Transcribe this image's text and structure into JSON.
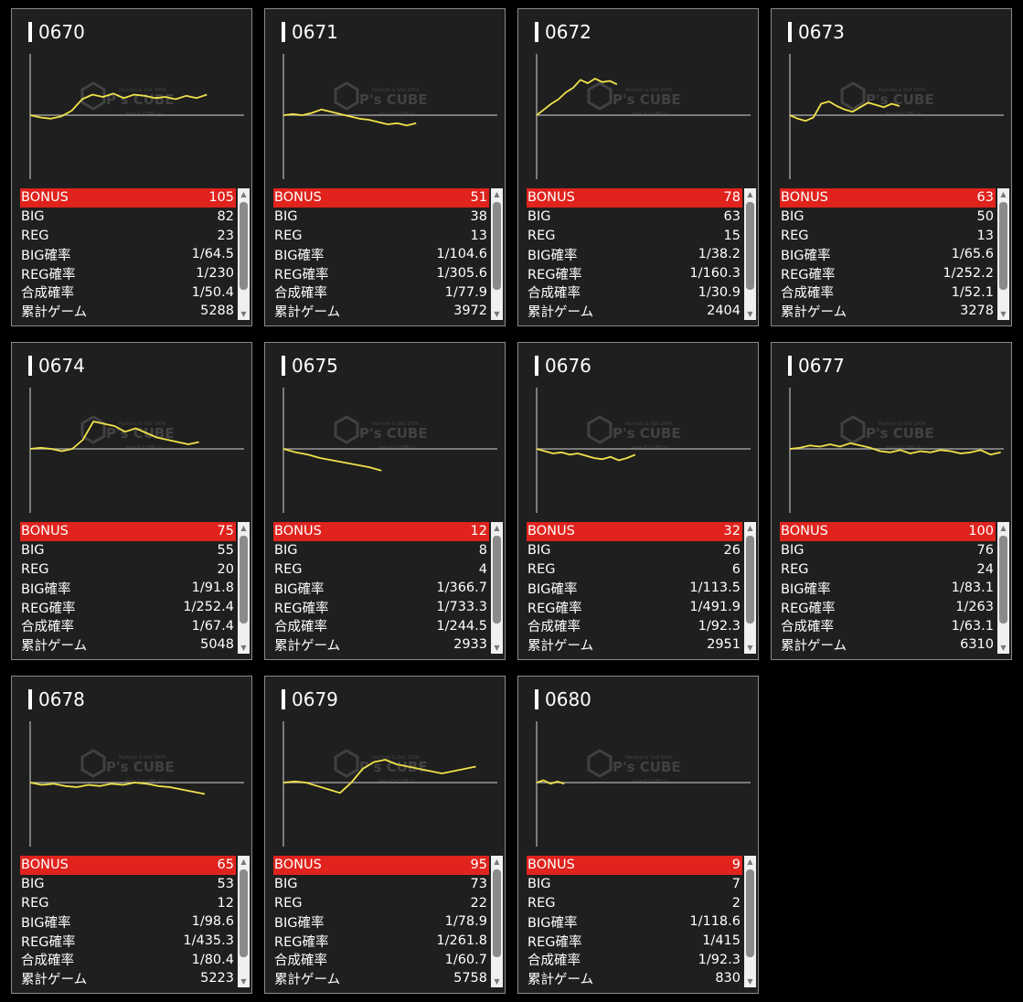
{
  "watermark": {
    "brand": "P's CUBE",
    "tagline": "Pachislo & Slot DATA",
    "sub": "data.P'sCUBE.jp"
  },
  "labels": {
    "bonus": "BONUS",
    "big": "BIG",
    "reg": "REG",
    "big_rate": "BIG確率",
    "reg_rate": "REG確率",
    "total_rate": "合成確率",
    "games": "累計ゲーム"
  },
  "colors": {
    "accent": "#e0231d",
    "graph_line": "#f0e24a",
    "panel": "#1f1f1f"
  },
  "machines": [
    {
      "id": "0670",
      "bonus": "105",
      "big": "82",
      "reg": "23",
      "big_rate": "1/64.5",
      "reg_rate": "1/230",
      "total_rate": "1/50.4",
      "games": "5288",
      "trend": [
        0,
        -2,
        -3,
        -1,
        4,
        14,
        18,
        16,
        19,
        15,
        18,
        17,
        15,
        16,
        14,
        17,
        15,
        18
      ]
    },
    {
      "id": "0671",
      "bonus": "51",
      "big": "38",
      "reg": "13",
      "big_rate": "1/104.6",
      "reg_rate": "1/305.6",
      "total_rate": "1/77.9",
      "games": "3972",
      "trend": [
        0,
        1,
        0,
        2,
        5,
        3,
        1,
        -1,
        -3,
        -4,
        -6,
        -8,
        -7,
        -9,
        -7
      ]
    },
    {
      "id": "0672",
      "bonus": "78",
      "big": "63",
      "reg": "15",
      "big_rate": "1/38.2",
      "reg_rate": "1/160.3",
      "total_rate": "1/30.9",
      "games": "2404",
      "trend": [
        0,
        5,
        10,
        14,
        20,
        24,
        31,
        28,
        32,
        29,
        30,
        27
      ]
    },
    {
      "id": "0673",
      "bonus": "63",
      "big": "50",
      "reg": "13",
      "big_rate": "1/65.6",
      "reg_rate": "1/252.2",
      "total_rate": "1/52.1",
      "games": "3278",
      "trend": [
        0,
        -3,
        -5,
        -2,
        10,
        12,
        8,
        5,
        3,
        7,
        11,
        9,
        7,
        10,
        8
      ]
    },
    {
      "id": "0674",
      "bonus": "75",
      "big": "55",
      "reg": "20",
      "big_rate": "1/91.8",
      "reg_rate": "1/252.4",
      "total_rate": "1/67.4",
      "games": "5048",
      "trend": [
        0,
        1,
        0,
        -2,
        0,
        8,
        24,
        22,
        20,
        15,
        18,
        14,
        10,
        8,
        6,
        4,
        6
      ]
    },
    {
      "id": "0675",
      "bonus": "12",
      "big": "8",
      "reg": "4",
      "big_rate": "1/366.7",
      "reg_rate": "1/733.3",
      "total_rate": "1/244.5",
      "games": "2933",
      "trend": [
        0,
        -3,
        -5,
        -8,
        -10,
        -12,
        -14,
        -16,
        -19
      ]
    },
    {
      "id": "0676",
      "bonus": "32",
      "big": "26",
      "reg": "6",
      "big_rate": "1/113.5",
      "reg_rate": "1/491.9",
      "total_rate": "1/92.3",
      "games": "2951",
      "trend": [
        0,
        -2,
        -4,
        -3,
        -5,
        -4,
        -6,
        -8,
        -9,
        -7,
        -10,
        -8,
        -5
      ]
    },
    {
      "id": "0677",
      "bonus": "100",
      "big": "76",
      "reg": "24",
      "big_rate": "1/83.1",
      "reg_rate": "1/263",
      "total_rate": "1/63.1",
      "games": "6310",
      "trend": [
        0,
        1,
        3,
        2,
        4,
        2,
        5,
        3,
        1,
        -2,
        -3,
        -1,
        -4,
        -2,
        -3,
        -1,
        -2,
        -4,
        -3,
        -1,
        -5,
        -3
      ]
    },
    {
      "id": "0678",
      "bonus": "65",
      "big": "53",
      "reg": "12",
      "big_rate": "1/98.6",
      "reg_rate": "1/435.3",
      "total_rate": "1/80.4",
      "games": "5223",
      "trend": [
        0,
        -2,
        -1,
        -3,
        -4,
        -2,
        -3,
        -1,
        -2,
        0,
        -1,
        -3,
        -4,
        -6,
        -8,
        -10
      ]
    },
    {
      "id": "0679",
      "bonus": "95",
      "big": "73",
      "reg": "22",
      "big_rate": "1/78.9",
      "reg_rate": "1/261.8",
      "total_rate": "1/60.7",
      "games": "5758",
      "trend": [
        0,
        1,
        0,
        -3,
        -6,
        -9,
        0,
        12,
        18,
        20,
        16,
        14,
        12,
        10,
        8,
        10,
        12,
        14
      ]
    },
    {
      "id": "0680",
      "bonus": "9",
      "big": "7",
      "reg": "2",
      "big_rate": "1/118.6",
      "reg_rate": "1/415",
      "total_rate": "1/92.3",
      "games": "830",
      "trend": [
        0,
        2,
        -1,
        1,
        -1
      ]
    }
  ]
}
